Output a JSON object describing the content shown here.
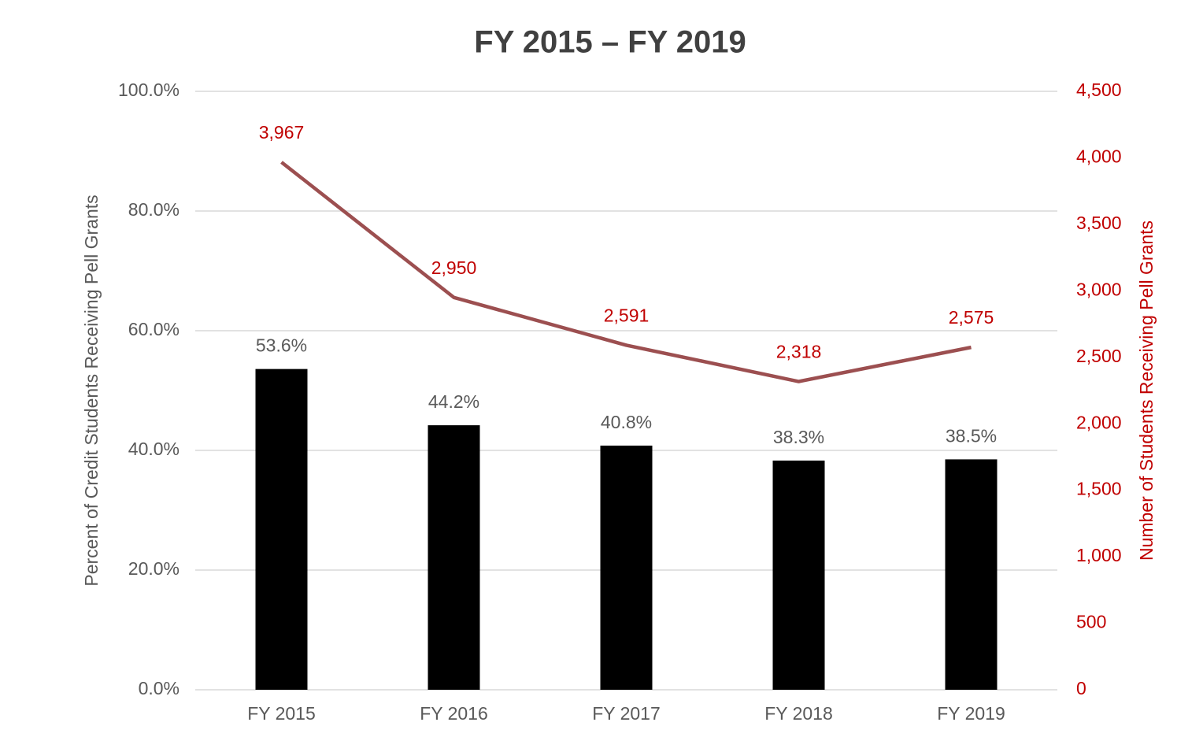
{
  "chart_data": {
    "type": "combo",
    "title": "FY 2015 – FY 2019",
    "ylabel": "Percent of Credit Students Receiving Pell Grants",
    "y2label": "Number of Students Receiving Pell Grants",
    "categories": [
      "FY 2015",
      "FY 2016",
      "FY 2017",
      "FY 2018",
      "FY 2019"
    ],
    "series": [
      {
        "type": "bar",
        "color": "#000000",
        "values": [
          53.6,
          44.2,
          40.8,
          38.3,
          38.5
        ],
        "value_labels": [
          "53.6%",
          "44.2%",
          "40.8%",
          "38.3%",
          "38.5%"
        ]
      },
      {
        "type": "line",
        "axis": "y2",
        "color": "#9c4f50",
        "values": [
          3967,
          2950,
          2591,
          2318,
          2575
        ],
        "value_labels": [
          "3,967",
          "2,950",
          "2,591",
          "2,318",
          "2,575"
        ]
      }
    ],
    "ylim": [
      0,
      100
    ],
    "yticks": [
      {
        "value": 0,
        "label": "0.0%"
      },
      {
        "value": 20,
        "label": "20.0%"
      },
      {
        "value": 40,
        "label": "40.0%"
      },
      {
        "value": 60,
        "label": "60.0%"
      },
      {
        "value": 80,
        "label": "80.0%"
      },
      {
        "value": 100,
        "label": "100.0%"
      }
    ],
    "y2lim": [
      0,
      4500
    ],
    "y2ticks": [
      0,
      500,
      {
        "value": 1000,
        "label": "1,000"
      },
      {
        "value": 1500,
        "label": "1,500"
      },
      {
        "value": 2000,
        "label": "2,000"
      },
      {
        "value": 2500,
        "label": "2,500"
      },
      {
        "value": 3000,
        "label": "3,000"
      },
      {
        "value": 3500,
        "label": "3,500"
      },
      {
        "value": 4000,
        "label": "4,000"
      },
      {
        "value": 4500,
        "label": "4,500"
      }
    ],
    "y2color": "#c00000",
    "grid": true
  }
}
